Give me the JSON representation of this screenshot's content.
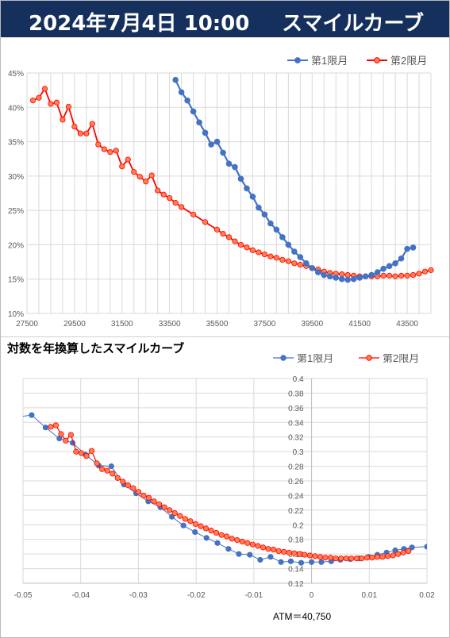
{
  "header": {
    "title": "2024年7月4日 10:00",
    "subtitle": "スマイルカーブ"
  },
  "colors": {
    "header_bg": "#16305d",
    "series1": "#4472c4",
    "series2": "#ff0000",
    "series2_fill": "#ff7f50",
    "grid": "#d9d9d9"
  },
  "chart2_title": "対数を年換算したスマイルカーブ",
  "atm_label": "ATM＝40,750",
  "chart_data": [
    {
      "type": "line",
      "title": "",
      "xlim": [
        27500,
        44500
      ],
      "ylim": [
        10,
        45
      ],
      "xticks": [
        "27500",
        "29500",
        "31500",
        "33500",
        "35500",
        "37500",
        "39500",
        "41500",
        "43500"
      ],
      "xtick_values": [
        27500,
        29500,
        31500,
        33500,
        35500,
        37500,
        39500,
        41500,
        43500
      ],
      "yticks": [
        "10%",
        "15%",
        "20%",
        "25%",
        "30%",
        "35%",
        "40%",
        "45%"
      ],
      "ytick_values": [
        10,
        15,
        20,
        25,
        30,
        35,
        40,
        45
      ],
      "grid": true,
      "legend": "top-right",
      "series": [
        {
          "name": "第1限月",
          "x": [
            33750,
            34000,
            34250,
            34500,
            34750,
            35000,
            35250,
            35500,
            35750,
            36000,
            36250,
            36500,
            36750,
            37000,
            37250,
            37500,
            37750,
            38000,
            38250,
            38500,
            38750,
            39000,
            39250,
            39500,
            39750,
            40000,
            40250,
            40500,
            40750,
            41000,
            41250,
            41500,
            41750,
            42000,
            42250,
            42500,
            42750,
            43000,
            43250,
            43500,
            43750
          ],
          "y": [
            44.0,
            42.2,
            41.0,
            39.4,
            37.8,
            36.3,
            34.6,
            35.0,
            33.4,
            31.8,
            31.3,
            29.6,
            28.2,
            27.0,
            25.4,
            24.4,
            23.1,
            22.2,
            21.1,
            20.0,
            19.0,
            18.2,
            17.3,
            16.6,
            16.0,
            15.6,
            15.4,
            15.2,
            15.0,
            14.9,
            15.0,
            15.2,
            15.4,
            15.6,
            16.0,
            16.5,
            16.9,
            17.3,
            18.0,
            19.4,
            19.6
          ]
        },
        {
          "name": "第2限月",
          "x": [
            27750,
            28000,
            28250,
            28500,
            28750,
            29000,
            29250,
            29500,
            29750,
            30000,
            30250,
            30500,
            30750,
            31000,
            31250,
            31500,
            31750,
            32000,
            32250,
            32500,
            32750,
            33000,
            33250,
            33500,
            33750,
            34000,
            34500,
            35000,
            35500,
            35750,
            36000,
            36250,
            36500,
            36750,
            37000,
            37250,
            37500,
            37750,
            38000,
            38250,
            38500,
            38750,
            39000,
            39250,
            39500,
            39750,
            40000,
            40250,
            40500,
            40750,
            41000,
            41250,
            41500,
            41750,
            42000,
            42250,
            42500,
            42750,
            43000,
            43250,
            43500,
            43750,
            44000,
            44250,
            44500
          ],
          "y": [
            41.0,
            41.4,
            42.7,
            40.5,
            40.7,
            38.2,
            40.1,
            37.2,
            36.2,
            36.2,
            37.6,
            34.6,
            33.9,
            33.5,
            33.7,
            31.4,
            32.4,
            30.6,
            29.9,
            29.2,
            30.1,
            27.9,
            27.3,
            26.8,
            26.1,
            25.5,
            24.4,
            23.3,
            22.2,
            21.6,
            21.1,
            20.5,
            20.0,
            19.6,
            19.2,
            18.9,
            18.6,
            18.3,
            18.1,
            17.8,
            17.6,
            17.3,
            17.1,
            16.9,
            16.6,
            16.4,
            16.1,
            15.9,
            15.8,
            15.7,
            15.6,
            15.5,
            15.4,
            15.4,
            15.4,
            15.4,
            15.5,
            15.5,
            15.4,
            15.5,
            15.5,
            15.6,
            15.8,
            16.1,
            16.3
          ]
        }
      ]
    },
    {
      "type": "scatter",
      "title": "",
      "xlim": [
        -0.05,
        0.02
      ],
      "ylim": [
        0.12,
        0.4
      ],
      "xticks": [
        "-0.05",
        "-0.04",
        "-0.03",
        "-0.02",
        "-0.01",
        "0",
        "0.01",
        "0.02"
      ],
      "xtick_values": [
        -0.05,
        -0.04,
        -0.03,
        -0.02,
        -0.01,
        0,
        0.01,
        0.02
      ],
      "yticks": [
        "0.12",
        "0.14",
        "0.16",
        "0.18",
        "0.2",
        "0.22",
        "0.24",
        "0.26",
        "0.28",
        "0.3",
        "0.32",
        "0.34",
        "0.36",
        "0.38",
        "0.4"
      ],
      "ytick_values": [
        0.12,
        0.14,
        0.16,
        0.18,
        0.2,
        0.22,
        0.24,
        0.26,
        0.28,
        0.3,
        0.32,
        0.34,
        0.36,
        0.38,
        0.4
      ],
      "grid": true,
      "legend": "top-right",
      "series": [
        {
          "name": "第1限月",
          "x": [
            -0.0505,
            -0.0485,
            -0.0461,
            -0.0437,
            -0.0414,
            -0.0392,
            -0.0369,
            -0.0347,
            -0.0325,
            -0.0304,
            -0.0283,
            -0.0262,
            -0.0242,
            -0.0222,
            -0.0202,
            -0.0182,
            -0.0163,
            -0.0144,
            -0.0126,
            -0.0107,
            -0.0089,
            -0.0071,
            -0.0053,
            -0.0036,
            -0.0018,
            0.0,
            0.0017,
            0.0034,
            0.005,
            0.0067,
            0.0083,
            0.0099,
            0.0114,
            0.013,
            0.0145,
            0.016,
            0.0174,
            0.02
          ],
          "y": [
            0.348,
            0.35,
            0.333,
            0.318,
            0.312,
            0.296,
            0.281,
            0.28,
            0.255,
            0.243,
            0.232,
            0.224,
            0.211,
            0.199,
            0.19,
            0.182,
            0.175,
            0.167,
            0.16,
            0.159,
            0.152,
            0.156,
            0.149,
            0.15,
            0.148,
            0.149,
            0.149,
            0.15,
            0.152,
            0.153,
            0.154,
            0.156,
            0.159,
            0.162,
            0.165,
            0.167,
            0.169,
            0.17
          ]
        },
        {
          "name": "第2限月",
          "x": [
            -0.0452,
            -0.0443,
            -0.0434,
            -0.0426,
            -0.0417,
            -0.0408,
            -0.0399,
            -0.039,
            -0.0381,
            -0.0372,
            -0.0363,
            -0.0354,
            -0.0345,
            -0.0336,
            -0.0327,
            -0.0318,
            -0.0309,
            -0.03,
            -0.0291,
            -0.0282,
            -0.0273,
            -0.0264,
            -0.0255,
            -0.0246,
            -0.0237,
            -0.0228,
            -0.0219,
            -0.021,
            -0.0201,
            -0.0192,
            -0.0183,
            -0.0174,
            -0.0165,
            -0.0156,
            -0.0147,
            -0.0138,
            -0.0129,
            -0.012,
            -0.0111,
            -0.0102,
            -0.0093,
            -0.0084,
            -0.0075,
            -0.0066,
            -0.0057,
            -0.0048,
            -0.0039,
            -0.003,
            -0.0021,
            -0.0012,
            -0.0003,
            0.0006,
            0.0015,
            0.0024,
            0.0033,
            0.0042,
            0.0051,
            0.006,
            0.0069,
            0.0078,
            0.0087,
            0.0096,
            0.0105,
            0.0114,
            0.0123,
            0.0132,
            0.0141,
            0.015,
            0.0159,
            0.0168
          ],
          "y": [
            0.334,
            0.336,
            0.324,
            0.315,
            0.323,
            0.3,
            0.298,
            0.294,
            0.301,
            0.284,
            0.276,
            0.274,
            0.27,
            0.264,
            0.259,
            0.254,
            0.25,
            0.245,
            0.24,
            0.237,
            0.232,
            0.228,
            0.224,
            0.22,
            0.216,
            0.212,
            0.208,
            0.205,
            0.201,
            0.198,
            0.195,
            0.192,
            0.189,
            0.186,
            0.184,
            0.181,
            0.179,
            0.177,
            0.175,
            0.173,
            0.171,
            0.169,
            0.167,
            0.166,
            0.164,
            0.163,
            0.162,
            0.161,
            0.16,
            0.159,
            0.158,
            0.157,
            0.156,
            0.155,
            0.155,
            0.154,
            0.154,
            0.154,
            0.154,
            0.154,
            0.154,
            0.155,
            0.155,
            0.156,
            0.156,
            0.157,
            0.158,
            0.16,
            0.162,
            0.164
          ]
        }
      ]
    }
  ]
}
